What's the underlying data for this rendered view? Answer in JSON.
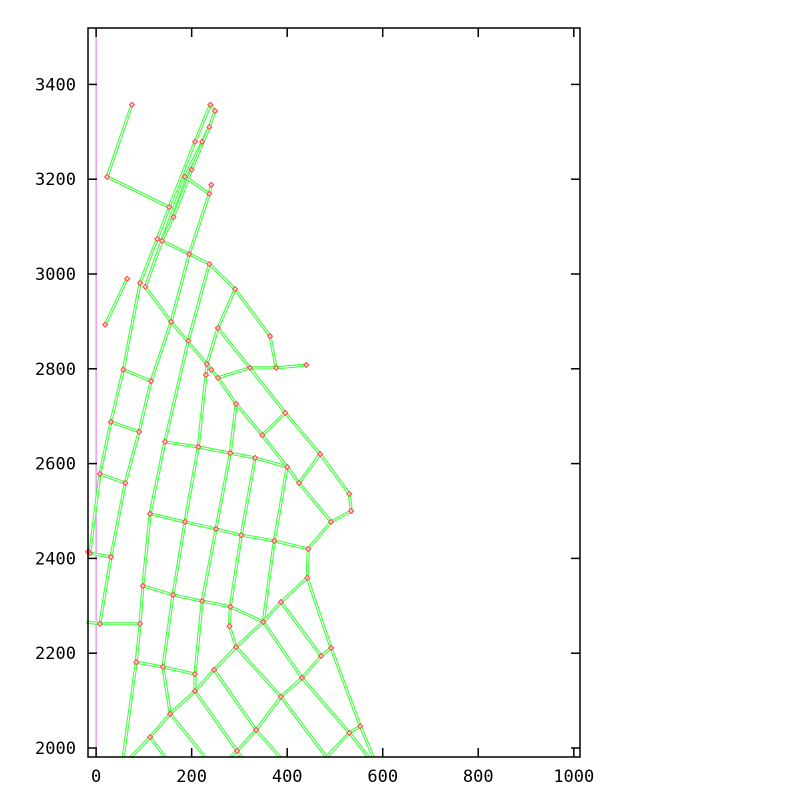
{
  "chart_data": {
    "type": "line",
    "title": "",
    "xlabel": "",
    "ylabel": "",
    "xlim": [
      -17,
      1013
    ],
    "ylim": [
      1981,
      3519
    ],
    "xticks": [
      "0",
      "200",
      "400",
      "600",
      "800",
      "1000"
    ],
    "yticks": [
      "2000",
      "2200",
      "2400",
      "2600",
      "2800",
      "3000",
      "3200",
      "3400"
    ],
    "grid": false,
    "colors": {
      "edge": "#44ff44",
      "edge_center": "#ffffff",
      "node": "#ff4444",
      "reference_line": "#ee66ee",
      "axis": "#000000"
    },
    "reference_line_x": 0,
    "segments": [
      [
        [
          75,
          3357
        ],
        [
          23,
          3205
        ],
        [
          153,
          3141
        ]
      ],
      [
        [
          239,
          3357
        ],
        [
          207,
          3279
        ],
        [
          153,
          3141
        ],
        [
          128,
          3074
        ],
        [
          92,
          2981
        ],
        [
          57,
          2798
        ],
        [
          31,
          2688
        ],
        [
          8,
          2578
        ],
        [
          -13,
          2411
        ]
      ],
      [
        [
          239,
          3357
        ],
        [
          249,
          3344
        ]
      ],
      [
        [
          249,
          3344
        ],
        [
          237,
          3310
        ],
        [
          222,
          3279
        ],
        [
          186,
          3205
        ],
        [
          138,
          3070
        ],
        [
          103,
          2973
        ],
        [
          157,
          2899
        ],
        [
          232,
          2810
        ],
        [
          241,
          2798
        ],
        [
          255,
          2781
        ],
        [
          293,
          2726
        ],
        [
          348,
          2660
        ],
        [
          400,
          2593
        ]
      ],
      [
        [
          237,
          3310
        ],
        [
          200,
          3220
        ],
        [
          162,
          3120
        ],
        [
          138,
          3070
        ]
      ],
      [
        [
          186,
          3205
        ],
        [
          237,
          3169
        ],
        [
          195,
          3042
        ],
        [
          157,
          2899
        ],
        [
          115,
          2774
        ],
        [
          90,
          2667
        ],
        [
          61,
          2559
        ],
        [
          31,
          2403
        ],
        [
          8,
          2262
        ]
      ],
      [
        [
          241,
          3188
        ],
        [
          237,
          3169
        ]
      ],
      [
        [
          128,
          3074
        ],
        [
          138,
          3070
        ],
        [
          195,
          3042
        ],
        [
          237,
          3021
        ],
        [
          291,
          2968
        ],
        [
          364,
          2869
        ],
        [
          377,
          2802
        ],
        [
          440,
          2808
        ]
      ],
      [
        [
          255,
          2781
        ],
        [
          322,
          2802
        ],
        [
          377,
          2802
        ]
      ],
      [
        [
          65,
          2990
        ],
        [
          19,
          2893
        ]
      ],
      [
        [
          237,
          3021
        ],
        [
          193,
          2859
        ],
        [
          144,
          2646
        ],
        [
          113,
          2494
        ],
        [
          98,
          2342
        ],
        [
          92,
          2262
        ],
        [
          84,
          2181
        ],
        [
          57,
          1981
        ]
      ],
      [
        [
          291,
          2968
        ],
        [
          255,
          2886
        ],
        [
          232,
          2810
        ],
        [
          230,
          2787
        ],
        [
          214,
          2635
        ],
        [
          186,
          2477
        ],
        [
          161,
          2323
        ],
        [
          140,
          2171
        ],
        [
          155,
          2072
        ]
      ],
      [
        [
          255,
          2886
        ],
        [
          322,
          2802
        ],
        [
          396,
          2707
        ],
        [
          469,
          2620
        ],
        [
          530,
          2536
        ],
        [
          534,
          2500
        ],
        [
          492,
          2477
        ],
        [
          444,
          2420
        ]
      ],
      [
        [
          396,
          2707
        ],
        [
          348,
          2660
        ]
      ],
      [
        [
          144,
          2646
        ],
        [
          214,
          2635
        ],
        [
          281,
          2622
        ],
        [
          333,
          2612
        ],
        [
          400,
          2593
        ],
        [
          425,
          2559
        ],
        [
          492,
          2477
        ]
      ],
      [
        [
          469,
          2620
        ],
        [
          425,
          2559
        ]
      ],
      [
        [
          293,
          2726
        ],
        [
          281,
          2622
        ],
        [
          251,
          2462
        ],
        [
          222,
          2310
        ],
        [
          207,
          2156
        ],
        [
          207,
          2120
        ]
      ],
      [
        [
          333,
          2612
        ],
        [
          304,
          2449
        ],
        [
          281,
          2298
        ],
        [
          279,
          2257
        ],
        [
          293,
          2213
        ]
      ],
      [
        [
          400,
          2593
        ],
        [
          373,
          2437
        ],
        [
          350,
          2266
        ]
      ],
      [
        [
          113,
          2494
        ],
        [
          186,
          2477
        ],
        [
          251,
          2462
        ],
        [
          304,
          2449
        ],
        [
          373,
          2437
        ],
        [
          444,
          2420
        ]
      ],
      [
        [
          444,
          2420
        ],
        [
          442,
          2359
        ],
        [
          492,
          2211
        ],
        [
          553,
          2046
        ],
        [
          580,
          1981
        ]
      ],
      [
        [
          442,
          2359
        ],
        [
          387,
          2308
        ],
        [
          350,
          2266
        ],
        [
          293,
          2213
        ],
        [
          247,
          2165
        ],
        [
          207,
          2120
        ],
        [
          155,
          2072
        ],
        [
          113,
          2023
        ],
        [
          73,
          1981
        ]
      ],
      [
        [
          57,
          2798
        ],
        [
          115,
          2774
        ]
      ],
      [
        [
          31,
          2688
        ],
        [
          90,
          2667
        ]
      ],
      [
        [
          8,
          2578
        ],
        [
          61,
          2559
        ]
      ],
      [
        [
          -17,
          2414
        ],
        [
          -13,
          2411
        ],
        [
          31,
          2403
        ]
      ],
      [
        [
          -21,
          2266
        ],
        [
          8,
          2262
        ],
        [
          92,
          2262
        ]
      ],
      [
        [
          98,
          2342
        ],
        [
          161,
          2323
        ],
        [
          222,
          2310
        ],
        [
          281,
          2298
        ],
        [
          350,
          2266
        ]
      ],
      [
        [
          84,
          2181
        ],
        [
          140,
          2171
        ],
        [
          207,
          2156
        ]
      ],
      [
        [
          387,
          2308
        ],
        [
          471,
          2194
        ]
      ],
      [
        [
          492,
          2211
        ],
        [
          471,
          2194
        ],
        [
          431,
          2148
        ],
        [
          387,
          2108
        ],
        [
          335,
          2038
        ],
        [
          295,
          1994
        ],
        [
          281,
          1981
        ]
      ],
      [
        [
          350,
          2266
        ],
        [
          431,
          2148
        ],
        [
          530,
          2032
        ],
        [
          570,
          1981
        ]
      ],
      [
        [
          293,
          2213
        ],
        [
          387,
          2108
        ],
        [
          482,
          1981
        ]
      ],
      [
        [
          247,
          2165
        ],
        [
          335,
          2038
        ],
        [
          385,
          1981
        ]
      ],
      [
        [
          207,
          2120
        ],
        [
          295,
          1994
        ],
        [
          304,
          1981
        ]
      ],
      [
        [
          155,
          2072
        ],
        [
          228,
          1981
        ]
      ],
      [
        [
          113,
          2023
        ],
        [
          144,
          1981
        ]
      ],
      [
        [
          553,
          2046
        ],
        [
          530,
          2032
        ],
        [
          482,
          1981
        ]
      ]
    ]
  }
}
